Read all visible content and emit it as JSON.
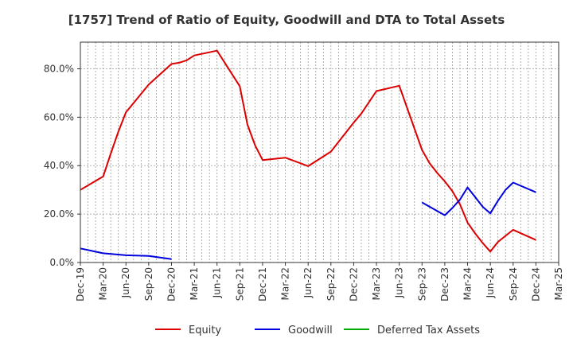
{
  "chart_data": {
    "type": "line",
    "title": "[1757]  Trend of Ratio of Equity, Goodwill and DTA to Total Assets",
    "x_tick_labels": [
      "Dec-19",
      "Mar-20",
      "Jun-20",
      "Sep-20",
      "Dec-20",
      "Mar-21",
      "Jun-21",
      "Sep-21",
      "Dec-21",
      "Mar-22",
      "Jun-22",
      "Sep-22",
      "Dec-22",
      "Mar-23",
      "Jun-23",
      "Sep-23",
      "Dec-23",
      "Mar-24",
      "Jun-24",
      "Sep-24",
      "Dec-24",
      "Mar-25"
    ],
    "y_tick_labels": [
      "0.0%",
      "20.0%",
      "40.0%",
      "60.0%",
      "80.0%"
    ],
    "y_ticks": [
      0,
      20,
      40,
      60,
      80
    ],
    "ylim": [
      0,
      91
    ],
    "grid": true,
    "legend_position": "bottom",
    "series": [
      {
        "name": "Equity",
        "color": "#dd0000",
        "points": [
          [
            "Dec-19",
            30.0
          ],
          [
            "Mar-20",
            35.5
          ],
          [
            "Apr-20",
            45.0
          ],
          [
            "May-20",
            54.0
          ],
          [
            "Jun-20",
            62.0
          ],
          [
            "Sep-20",
            73.5
          ],
          [
            "Dec-20",
            82.0
          ],
          [
            "Jan-21",
            82.5
          ],
          [
            "Feb-21",
            83.5
          ],
          [
            "Mar-21",
            85.5
          ],
          [
            "Jun-21",
            87.5
          ],
          [
            "Sep-21",
            72.8
          ],
          [
            "Oct-21",
            57.0
          ],
          [
            "Nov-21",
            48.5
          ],
          [
            "Dec-21",
            42.3
          ],
          [
            "Mar-22",
            43.3
          ],
          [
            "Jun-22",
            39.8
          ],
          [
            "Sep-22",
            45.8
          ],
          [
            "Dec-22",
            57.8
          ],
          [
            "Jan-23",
            61.5
          ],
          [
            "Mar-23",
            70.8
          ],
          [
            "Jun-23",
            73.0
          ],
          [
            "Sep-23",
            46.5
          ],
          [
            "Oct-23",
            41.0
          ],
          [
            "Nov-23",
            37.0
          ],
          [
            "Dec-23",
            33.5
          ],
          [
            "Jan-24",
            29.5
          ],
          [
            "Feb-24",
            24.0
          ],
          [
            "Mar-24",
            16.5
          ],
          [
            "Apr-24",
            12.0
          ],
          [
            "May-24",
            8.0
          ],
          [
            "Jun-24",
            4.5
          ],
          [
            "Jul-24",
            8.5
          ],
          [
            "Aug-24",
            11.0
          ],
          [
            "Sep-24",
            13.5
          ],
          [
            "Dec-24",
            9.3
          ]
        ]
      },
      {
        "name": "Goodwill",
        "color": "#0000dd",
        "points": [
          [
            "Dec-19",
            5.8
          ],
          [
            "Mar-20",
            3.8
          ],
          [
            "Jun-20",
            3.0
          ],
          [
            "Sep-20",
            2.7
          ],
          [
            "Dec-20",
            1.4
          ],
          [
            "Sep-23",
            24.8
          ],
          [
            "Dec-23",
            19.5
          ],
          [
            "Jan-24",
            22.5
          ],
          [
            "Feb-24",
            26.0
          ],
          [
            "Mar-24",
            31.0
          ],
          [
            "Apr-24",
            27.0
          ],
          [
            "May-24",
            23.0
          ],
          [
            "Jun-24",
            20.3
          ],
          [
            "Jul-24",
            25.5
          ],
          [
            "Aug-24",
            30.0
          ],
          [
            "Sep-24",
            33.0
          ],
          [
            "Dec-24",
            29.0
          ]
        ]
      },
      {
        "name": "Deferred Tax Assets",
        "color": "#00aa00",
        "points": []
      }
    ]
  }
}
